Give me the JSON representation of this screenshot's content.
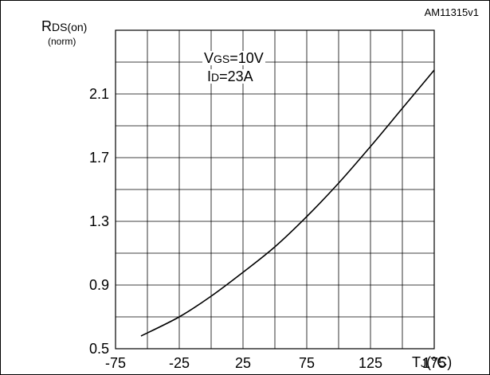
{
  "doc_code": "AM11315v1",
  "chart_data": {
    "type": "line",
    "ylabel_main": "R",
    "ylabel_sub": "DS(on)",
    "yunit": "(norm)",
    "xlabel_main": "T",
    "xlabel_sub": "J",
    "xunit": "(°C)",
    "annotations": [
      {
        "main": "V",
        "sub": "GS",
        "rest": "=10V"
      },
      {
        "main": "I",
        "sub": "D",
        "rest": "=23A"
      }
    ],
    "x_ticks": [
      "-75",
      "-25",
      "25",
      "75",
      "125",
      "175"
    ],
    "y_ticks": [
      "0.5",
      "0.9",
      "1.3",
      "1.7",
      "2.1"
    ],
    "xlim": [
      -75,
      175
    ],
    "ylim": [
      0.5,
      2.5
    ],
    "grid": true,
    "series": [
      {
        "x": [
          -55,
          -25,
          0,
          25,
          50,
          75,
          100,
          125,
          150,
          175
        ],
        "y": [
          0.58,
          0.7,
          0.83,
          0.98,
          1.14,
          1.33,
          1.54,
          1.77,
          2.01,
          2.25
        ]
      }
    ]
  }
}
